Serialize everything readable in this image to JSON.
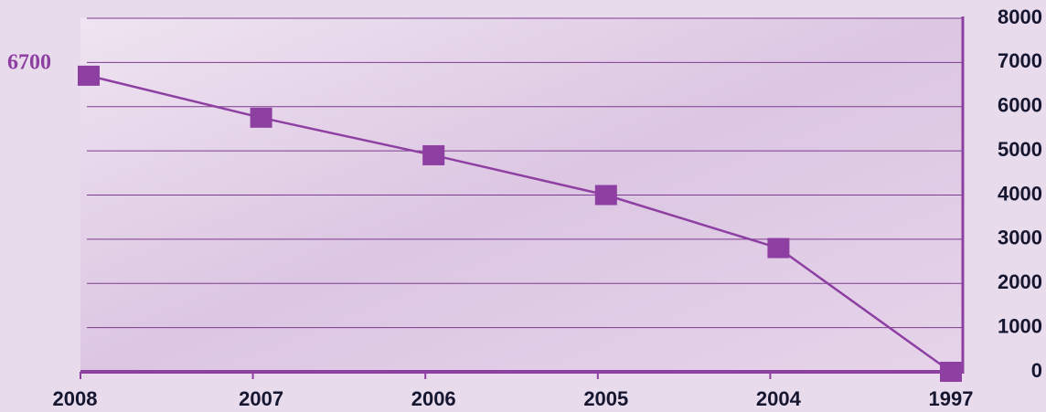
{
  "chart_data": {
    "type": "line",
    "categories": [
      "2008",
      "2007",
      "2006",
      "2005",
      "2004",
      "1997"
    ],
    "values": [
      6700,
      5750,
      4900,
      4000,
      2800,
      0
    ],
    "color": "#8e3fa2",
    "ylim": [
      0,
      8000
    ],
    "yticks": [
      0,
      1000,
      2000,
      3000,
      4000,
      5000,
      6000,
      7000,
      8000
    ],
    "grid": true
  }
}
